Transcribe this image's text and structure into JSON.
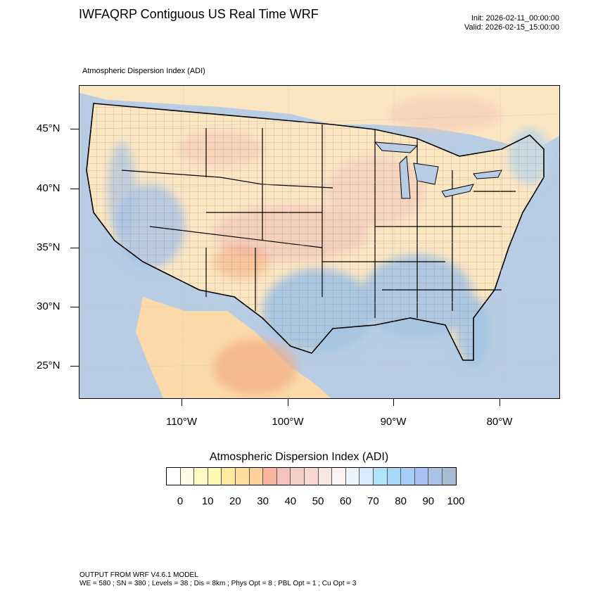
{
  "header": {
    "title": "IWFAQRP Contiguous US Real Time WRF",
    "init": "Init: 2026-02-11_00:00:00",
    "valid": "Valid: 2026-02-15_15:00:00",
    "subtitle": "Atmospheric Dispersion Index   (ADI)"
  },
  "map": {
    "lat_labels": [
      "45°N",
      "40°N",
      "35°N",
      "30°N",
      "25°N"
    ],
    "lon_labels": [
      "110°W",
      "100°W",
      "90°W",
      "80°W"
    ],
    "colors": {
      "ocean": "#b8cde3",
      "land_low": "#fbe6c2",
      "plains": "#f3d6c8",
      "southeast": "#a6c4e2",
      "mountain": "#f2a77e",
      "border": "#000000"
    }
  },
  "colorbar": {
    "title": "Atmospheric Dispersion Index  (ADI)",
    "colors": [
      "#ffffff",
      "#fffce6",
      "#fffac4",
      "#fff8b0",
      "#ffe9a0",
      "#ffdc9a",
      "#ffd09a",
      "#f9b49e",
      "#f4c4bc",
      "#f6d0c6",
      "#f7d9d2",
      "#f8e6e2",
      "#fdf2f2",
      "#eef3fb",
      "#d8eafd",
      "#b3e3fb",
      "#a7d8f8",
      "#a7cef5",
      "#a5c2f2",
      "#a9c3e6",
      "#a7bdd3"
    ],
    "labels": [
      "0",
      "10",
      "20",
      "30",
      "40",
      "50",
      "60",
      "70",
      "80",
      "90",
      "100"
    ]
  },
  "footer": {
    "line1": "OUTPUT FROM WRF V4.6.1 MODEL",
    "line2": "WE = 580 ; SN = 380 ; Levels = 38 ; Dis = 8km ; Phys Opt = 8 ; PBL Opt = 1 ; Cu Opt = 3"
  }
}
